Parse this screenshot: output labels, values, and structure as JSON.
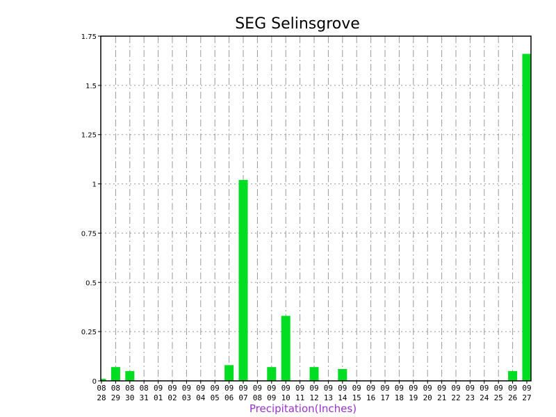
{
  "chart_data": {
    "type": "bar",
    "title": "SEG Selinsgrove",
    "xlabel": "Precipitation(Inches)",
    "ylabel": "",
    "ylim": [
      0,
      1.75
    ],
    "yticks": [
      "0",
      "0.25",
      "0.5",
      "0.75",
      "1",
      "1.25",
      "1.5",
      "1.75"
    ],
    "categories": [
      [
        "08",
        "28"
      ],
      [
        "08",
        "29"
      ],
      [
        "08",
        "30"
      ],
      [
        "08",
        "31"
      ],
      [
        "09",
        "01"
      ],
      [
        "09",
        "02"
      ],
      [
        "09",
        "03"
      ],
      [
        "09",
        "04"
      ],
      [
        "09",
        "05"
      ],
      [
        "09",
        "06"
      ],
      [
        "09",
        "07"
      ],
      [
        "09",
        "08"
      ],
      [
        "09",
        "09"
      ],
      [
        "09",
        "10"
      ],
      [
        "09",
        "11"
      ],
      [
        "09",
        "12"
      ],
      [
        "09",
        "13"
      ],
      [
        "09",
        "14"
      ],
      [
        "09",
        "15"
      ],
      [
        "09",
        "16"
      ],
      [
        "09",
        "17"
      ],
      [
        "09",
        "18"
      ],
      [
        "09",
        "19"
      ],
      [
        "09",
        "20"
      ],
      [
        "09",
        "21"
      ],
      [
        "09",
        "22"
      ],
      [
        "09",
        "23"
      ],
      [
        "09",
        "24"
      ],
      [
        "09",
        "25"
      ],
      [
        "09",
        "26"
      ],
      [
        "09",
        "27"
      ]
    ],
    "values": [
      0.01,
      0.07,
      0.05,
      0,
      0,
      0,
      0,
      0,
      0,
      0.08,
      1.02,
      0,
      0.07,
      0.33,
      0,
      0.07,
      0,
      0.06,
      0,
      0,
      0,
      0,
      0,
      0,
      0,
      0,
      0,
      0,
      0,
      0.05,
      1.66
    ],
    "grid": true,
    "legend": "none",
    "colors": {
      "bar": "#00dd22",
      "xlabel": "#9933cc",
      "axis": "#000000",
      "grid": "#999999"
    }
  }
}
